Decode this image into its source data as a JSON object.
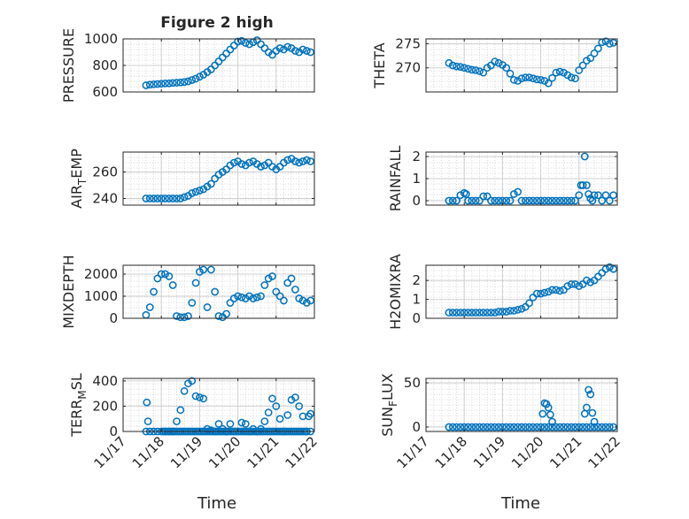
{
  "figure": {
    "title": "Figure 2 high",
    "xlabel": "Time",
    "marker_color": "#0072BD",
    "axis_color": "#262626",
    "grid_color": "#d0d0d0"
  },
  "chart_data": [
    {
      "type": "scatter",
      "ylabel": "PRESSURE",
      "ylim": [
        600,
        1000
      ],
      "yticks": [
        "600",
        "800",
        "1000"
      ],
      "ytick_values": [
        600,
        800,
        1000
      ],
      "xlim": [
        0,
        5
      ],
      "xticks": [
        "11/17",
        "11/18",
        "11/19",
        "11/20",
        "11/21",
        "11/22"
      ],
      "show_xtick_labels": false,
      "x": [
        0.6,
        0.7,
        0.8,
        0.9,
        1.0,
        1.1,
        1.2,
        1.3,
        1.4,
        1.5,
        1.6,
        1.7,
        1.8,
        1.9,
        2.0,
        2.1,
        2.2,
        2.3,
        2.4,
        2.5,
        2.6,
        2.7,
        2.8,
        2.9,
        3.0,
        3.1,
        3.2,
        3.3,
        3.4,
        3.5,
        3.6,
        3.7,
        3.8,
        3.9,
        4.0,
        4.1,
        4.2,
        4.3,
        4.4,
        4.5,
        4.6,
        4.7,
        4.8,
        4.9
      ],
      "y": [
        650,
        655,
        658,
        660,
        662,
        664,
        665,
        668,
        670,
        672,
        675,
        680,
        690,
        700,
        715,
        730,
        750,
        770,
        800,
        830,
        860,
        890,
        920,
        950,
        980,
        985,
        970,
        960,
        975,
        990,
        960,
        930,
        900,
        880,
        910,
        930,
        920,
        940,
        930,
        910,
        900,
        920,
        910,
        900
      ]
    },
    {
      "type": "scatter",
      "ylabel": "THETA",
      "ylim": [
        265,
        276
      ],
      "yticks": [
        "270",
        "275"
      ],
      "ytick_values": [
        270,
        275
      ],
      "xlim": [
        0,
        5
      ],
      "xticks": [
        "11/17",
        "11/18",
        "11/19",
        "11/20",
        "11/21",
        "11/22"
      ],
      "show_xtick_labels": false,
      "x": [
        0.6,
        0.7,
        0.8,
        0.9,
        1.0,
        1.1,
        1.2,
        1.3,
        1.4,
        1.5,
        1.6,
        1.7,
        1.8,
        1.9,
        2.0,
        2.1,
        2.2,
        2.3,
        2.4,
        2.5,
        2.6,
        2.7,
        2.8,
        2.9,
        3.0,
        3.1,
        3.2,
        3.3,
        3.4,
        3.5,
        3.6,
        3.7,
        3.8,
        3.9,
        4.0,
        4.1,
        4.2,
        4.3,
        4.4,
        4.5,
        4.6,
        4.7,
        4.8,
        4.9
      ],
      "y": [
        271.0,
        270.5,
        270.3,
        270.2,
        270.0,
        269.8,
        269.6,
        269.5,
        269.3,
        269.0,
        270.0,
        270.5,
        271.3,
        271.0,
        270.6,
        270.0,
        268.8,
        267.5,
        267.3,
        267.8,
        268.0,
        268.0,
        267.8,
        267.6,
        267.5,
        267.3,
        266.8,
        267.9,
        269.0,
        269.2,
        269.0,
        268.5,
        268.0,
        267.8,
        269.5,
        270.5,
        271.5,
        272.0,
        273.0,
        274.0,
        275.3,
        275.5,
        275.0,
        275.2
      ]
    },
    {
      "type": "scatter",
      "ylabel": "AIR_TEMP",
      "ylim": [
        235,
        275
      ],
      "yticks": [
        "240",
        "260"
      ],
      "ytick_values": [
        240,
        260
      ],
      "xlim": [
        0,
        5
      ],
      "xticks": [
        "11/17",
        "11/18",
        "11/19",
        "11/20",
        "11/21",
        "11/22"
      ],
      "show_xtick_labels": false,
      "x": [
        0.6,
        0.7,
        0.8,
        0.9,
        1.0,
        1.1,
        1.2,
        1.3,
        1.4,
        1.5,
        1.6,
        1.7,
        1.8,
        1.9,
        2.0,
        2.1,
        2.2,
        2.3,
        2.4,
        2.5,
        2.6,
        2.7,
        2.8,
        2.9,
        3.0,
        3.1,
        3.2,
        3.3,
        3.4,
        3.5,
        3.6,
        3.7,
        3.8,
        3.9,
        4.0,
        4.1,
        4.2,
        4.3,
        4.4,
        4.5,
        4.6,
        4.7,
        4.8,
        4.9
      ],
      "y": [
        240,
        240,
        240,
        240,
        240,
        240,
        240,
        240,
        240,
        240,
        241,
        242,
        244,
        245,
        246,
        247,
        249,
        251,
        255,
        258,
        260,
        262,
        265,
        267,
        268,
        266,
        265,
        267,
        268,
        266,
        264,
        265,
        267,
        264,
        262,
        264,
        267,
        269,
        270,
        268,
        267,
        268,
        269,
        268
      ]
    },
    {
      "type": "scatter",
      "ylabel": "RAINFALL",
      "ylim": [
        -0.2,
        2.2
      ],
      "yticks": [
        "0",
        "1",
        "2"
      ],
      "ytick_values": [
        0,
        1,
        2
      ],
      "xlim": [
        0,
        5
      ],
      "xticks": [
        "11/17",
        "11/18",
        "11/19",
        "11/20",
        "11/21",
        "11/22"
      ],
      "show_xtick_labels": false,
      "x": [
        0.6,
        0.7,
        0.8,
        0.9,
        1.0,
        1.05,
        1.1,
        1.2,
        1.3,
        1.4,
        1.5,
        1.6,
        1.7,
        1.8,
        1.9,
        2.0,
        2.1,
        2.2,
        2.3,
        2.4,
        2.5,
        2.6,
        2.7,
        2.8,
        2.9,
        3.0,
        3.1,
        3.2,
        3.3,
        3.4,
        3.5,
        3.6,
        3.7,
        3.8,
        3.9,
        4.0,
        4.05,
        4.1,
        4.15,
        4.2,
        4.25,
        4.3,
        4.35,
        4.4,
        4.5,
        4.6,
        4.7,
        4.8,
        4.9
      ],
      "y": [
        0,
        0,
        0,
        0.25,
        0.35,
        0.3,
        0,
        0,
        0,
        0,
        0.2,
        0.2,
        0,
        0,
        0,
        0,
        0,
        0,
        0.3,
        0.4,
        0,
        0,
        0,
        0,
        0,
        0,
        0,
        0,
        0,
        0,
        0,
        0,
        0,
        0,
        0,
        0.25,
        0.7,
        0.7,
        2.0,
        0.7,
        0.3,
        0.1,
        0,
        0.25,
        0.25,
        0,
        0.25,
        0,
        0.25
      ]
    },
    {
      "type": "scatter",
      "ylabel": "MIXDEPTH",
      "ylim": [
        0,
        2400
      ],
      "yticks": [
        "0",
        "1000",
        "2000"
      ],
      "ytick_values": [
        0,
        1000,
        2000
      ],
      "xlim": [
        0,
        5
      ],
      "xticks": [
        "11/17",
        "11/18",
        "11/19",
        "11/20",
        "11/21",
        "11/22"
      ],
      "show_xtick_labels": false,
      "x": [
        0.6,
        0.7,
        0.8,
        0.9,
        1.0,
        1.1,
        1.2,
        1.3,
        1.4,
        1.5,
        1.6,
        1.7,
        1.8,
        1.9,
        2.0,
        2.1,
        2.2,
        2.3,
        2.4,
        2.5,
        2.6,
        2.7,
        2.8,
        2.9,
        3.0,
        3.1,
        3.2,
        3.3,
        3.4,
        3.5,
        3.6,
        3.7,
        3.8,
        3.9,
        4.0,
        4.1,
        4.2,
        4.3,
        4.4,
        4.5,
        4.6,
        4.7,
        4.8,
        4.9
      ],
      "y": [
        150,
        500,
        1200,
        1800,
        2000,
        2000,
        1900,
        1500,
        100,
        50,
        50,
        100,
        700,
        1600,
        2100,
        2200,
        500,
        2200,
        1200,
        100,
        50,
        200,
        700,
        900,
        1000,
        950,
        900,
        1000,
        900,
        950,
        1000,
        1500,
        1800,
        1900,
        1200,
        1000,
        800,
        1600,
        1800,
        1300,
        900,
        800,
        700,
        800
      ]
    },
    {
      "type": "scatter",
      "ylabel": "H2OMIXRA",
      "ylim": [
        0,
        2.8
      ],
      "yticks": [
        "0",
        "1",
        "2"
      ],
      "ytick_values": [
        0,
        1,
        2
      ],
      "xlim": [
        0,
        5
      ],
      "xticks": [
        "11/17",
        "11/18",
        "11/19",
        "11/20",
        "11/21",
        "11/22"
      ],
      "show_xtick_labels": false,
      "x": [
        0.6,
        0.7,
        0.8,
        0.9,
        1.0,
        1.1,
        1.2,
        1.3,
        1.4,
        1.5,
        1.6,
        1.7,
        1.8,
        1.9,
        2.0,
        2.1,
        2.2,
        2.3,
        2.4,
        2.5,
        2.6,
        2.7,
        2.8,
        2.9,
        3.0,
        3.1,
        3.2,
        3.3,
        3.4,
        3.5,
        3.6,
        3.7,
        3.8,
        3.9,
        4.0,
        4.1,
        4.2,
        4.3,
        4.4,
        4.5,
        4.6,
        4.7,
        4.8,
        4.9
      ],
      "y": [
        0.3,
        0.3,
        0.3,
        0.3,
        0.3,
        0.3,
        0.3,
        0.3,
        0.3,
        0.3,
        0.3,
        0.3,
        0.3,
        0.35,
        0.35,
        0.35,
        0.4,
        0.4,
        0.45,
        0.5,
        0.6,
        0.8,
        1.1,
        1.3,
        1.3,
        1.35,
        1.4,
        1.5,
        1.5,
        1.45,
        1.5,
        1.7,
        1.8,
        1.8,
        1.7,
        1.8,
        2.0,
        1.9,
        2.0,
        2.2,
        2.4,
        2.6,
        2.7,
        2.6
      ]
    },
    {
      "type": "scatter",
      "ylabel": "TERR_MSL",
      "ylim": [
        0,
        420
      ],
      "yticks": [
        "0",
        "200",
        "400"
      ],
      "ytick_values": [
        0,
        200,
        400
      ],
      "xlim": [
        0,
        5
      ],
      "xticks": [
        "11/17",
        "11/18",
        "11/19",
        "11/20",
        "11/21",
        "11/22"
      ],
      "show_xtick_labels": true,
      "x": [
        0.6,
        0.7,
        0.8,
        0.9,
        1.0,
        1.1,
        1.2,
        1.3,
        1.4,
        1.5,
        1.6,
        1.7,
        1.8,
        1.9,
        2.0,
        2.1,
        2.2,
        2.3,
        2.4,
        2.5,
        2.6,
        2.7,
        2.8,
        2.9,
        3.0,
        3.1,
        3.2,
        3.3,
        3.4,
        3.5,
        3.6,
        3.7,
        3.8,
        3.9,
        4.0,
        4.1,
        4.2,
        4.3,
        4.4,
        4.5,
        4.6,
        4.7,
        4.8,
        4.9,
        0.62,
        0.65,
        1.05,
        1.1,
        1.15,
        1.2,
        1.25,
        1.3,
        1.35,
        1.4,
        1.45,
        1.5,
        1.55,
        1.6,
        1.65,
        1.7,
        1.75,
        1.8,
        1.85,
        1.9,
        1.95,
        2.0,
        2.05,
        2.1,
        2.15,
        2.2,
        2.25,
        2.3,
        2.35,
        2.4,
        2.45,
        2.5,
        2.55,
        2.6,
        2.65,
        2.7,
        2.75,
        2.8,
        2.85,
        2.9,
        2.95,
        3.0,
        3.05,
        3.1,
        3.15,
        3.2,
        3.25,
        3.3,
        3.35,
        3.4,
        3.45,
        3.5,
        3.55,
        3.6,
        3.65,
        3.7,
        3.75,
        3.8,
        3.85,
        3.9,
        3.95,
        4.0,
        4.05,
        4.1,
        4.15,
        4.2,
        4.25,
        4.3,
        4.35,
        4.4,
        4.45,
        4.5,
        4.55,
        4.6,
        4.65,
        4.7,
        4.75,
        4.8,
        4.85,
        4.9
      ],
      "y": [
        0,
        0,
        0,
        0,
        0,
        0,
        0,
        0,
        80,
        170,
        320,
        380,
        400,
        280,
        270,
        260,
        20,
        10,
        0,
        60,
        20,
        0,
        60,
        0,
        0,
        70,
        60,
        0,
        20,
        0,
        20,
        80,
        150,
        260,
        200,
        100,
        0,
        130,
        250,
        270,
        200,
        120,
        0,
        0,
        230,
        80,
        0,
        0,
        0,
        0,
        0,
        0,
        0,
        0,
        0,
        0,
        0,
        0,
        0,
        0,
        0,
        0,
        0,
        0,
        0,
        0,
        0,
        0,
        0,
        0,
        0,
        0,
        0,
        0,
        0,
        0,
        0,
        0,
        0,
        0,
        0,
        0,
        0,
        0,
        0,
        0,
        0,
        0,
        0,
        0,
        0,
        0,
        0,
        0,
        0,
        0,
        0,
        0,
        0,
        0,
        0,
        0,
        0,
        0,
        0,
        0,
        0,
        0,
        0,
        0,
        0,
        0,
        0,
        0,
        0,
        0,
        0,
        0,
        0,
        0,
        0,
        0,
        120,
        140
      ]
    },
    {
      "type": "scatter",
      "ylabel": "SUN_FLUX",
      "ylim": [
        -5,
        55
      ],
      "yticks": [
        "0",
        "50"
      ],
      "ytick_values": [
        0,
        50
      ],
      "xlim": [
        0,
        5
      ],
      "xticks": [
        "11/17",
        "11/18",
        "11/19",
        "11/20",
        "11/21",
        "11/22"
      ],
      "show_xtick_labels": true,
      "x": [
        0.6,
        0.7,
        0.8,
        0.9,
        1.0,
        1.1,
        1.2,
        1.3,
        1.4,
        1.5,
        1.6,
        1.7,
        1.8,
        1.9,
        2.0,
        2.1,
        2.2,
        2.3,
        2.4,
        2.5,
        2.6,
        2.7,
        2.8,
        2.9,
        3.0,
        3.1,
        3.2,
        3.3,
        3.4,
        3.5,
        3.6,
        3.7,
        3.8,
        3.9,
        4.0,
        4.1,
        4.2,
        4.3,
        4.4,
        4.5,
        4.6,
        4.7,
        4.8,
        4.9,
        3.05,
        3.1,
        3.15,
        3.2,
        3.25,
        3.3,
        4.15,
        4.2,
        4.25,
        4.3,
        4.35,
        4.4
      ],
      "y": [
        0,
        0,
        0,
        0,
        0,
        0,
        0,
        0,
        0,
        0,
        0,
        0,
        0,
        0,
        0,
        0,
        0,
        0,
        0,
        0,
        0,
        0,
        0,
        0,
        0,
        0,
        0,
        0,
        0,
        0,
        0,
        0,
        0,
        0,
        0,
        0,
        0,
        0,
        0,
        0,
        0,
        0,
        0,
        0,
        15,
        27,
        26,
        22,
        14,
        6,
        15,
        22,
        42,
        37,
        16,
        6
      ]
    }
  ]
}
